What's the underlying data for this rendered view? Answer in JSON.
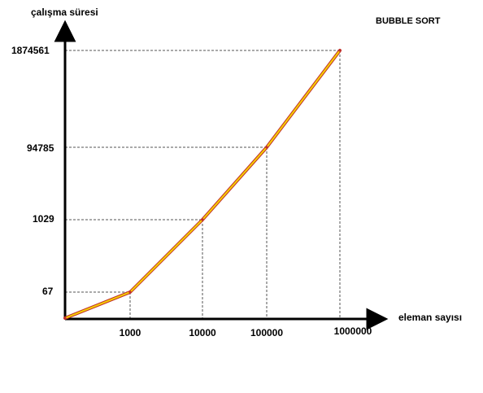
{
  "chart_data": {
    "type": "line",
    "title": "BUBBLE SORT",
    "xlabel": "eleman sayısı",
    "ylabel": "çalışma süresi",
    "x_tick_labels": [
      "1000",
      "10000",
      "100000",
      "1000000"
    ],
    "y_tick_labels": [
      "67",
      "1029",
      "94785",
      "1874561"
    ],
    "series": [
      {
        "x": [
          0,
          1000,
          10000,
          100000,
          1000000
        ],
        "values": [
          0,
          67,
          1029,
          94785,
          1874561
        ]
      }
    ],
    "grid": "dashed guide lines from each point to both axes",
    "colors": {
      "line_outer": "#c0302a",
      "line_inner": "#f5d000",
      "guides": "#555555",
      "axes": "#000000"
    }
  }
}
